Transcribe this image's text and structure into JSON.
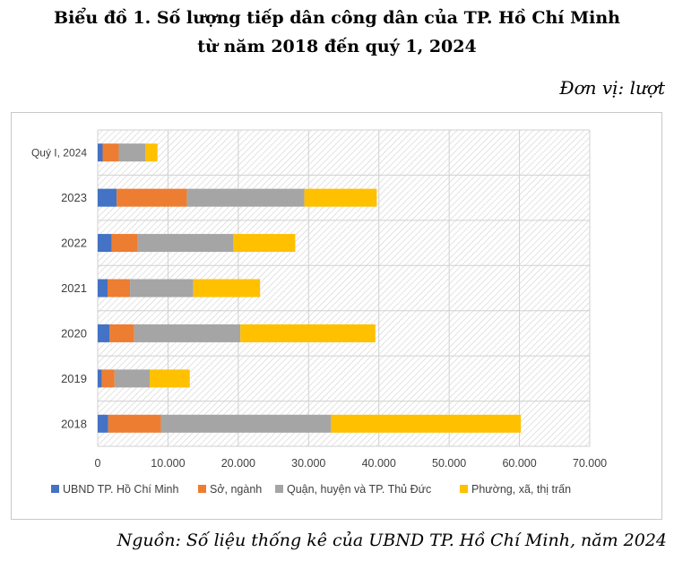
{
  "title_line1": "Biểu đồ 1. Số lượng tiếp dân công dân của TP. Hồ Chí Minh",
  "title_line2": "từ năm 2018 đến quý 1, 2024",
  "unit": "Đơn vị: lượt",
  "source": "Nguồn: Số liệu thống kê của UBND TP. Hồ Chí Minh, năm 2024",
  "chart_data": {
    "type": "bar",
    "orientation": "horizontal",
    "stacked": true,
    "categories": [
      "Quý I, 2024",
      "2023",
      "2022",
      "2021",
      "2020",
      "2019",
      "2018"
    ],
    "series": [
      {
        "name": "UBND TP. Hồ Chí Minh",
        "color": "#4472c4",
        "values": [
          700,
          2700,
          2000,
          1400,
          1700,
          600,
          1500
        ]
      },
      {
        "name": "Sở, ngành",
        "color": "#ed7d31",
        "values": [
          2300,
          10000,
          3700,
          3200,
          3500,
          1800,
          7500
        ]
      },
      {
        "name": "Quận, huyện và TP. Thủ Đức",
        "color": "#a5a5a5",
        "values": [
          3800,
          16700,
          13600,
          9000,
          15100,
          5000,
          24200
        ]
      },
      {
        "name": "Phường, xã, thị trấn",
        "color": "#ffc000",
        "values": [
          1700,
          10300,
          8800,
          9500,
          19200,
          5700,
          27000
        ]
      }
    ],
    "xlim": [
      0,
      70000
    ],
    "xticks": [
      "0",
      "10.000",
      "20.000",
      "30.000",
      "40.000",
      "50.000",
      "60.000",
      "70.000"
    ],
    "grid": true,
    "legend": "bottom"
  }
}
